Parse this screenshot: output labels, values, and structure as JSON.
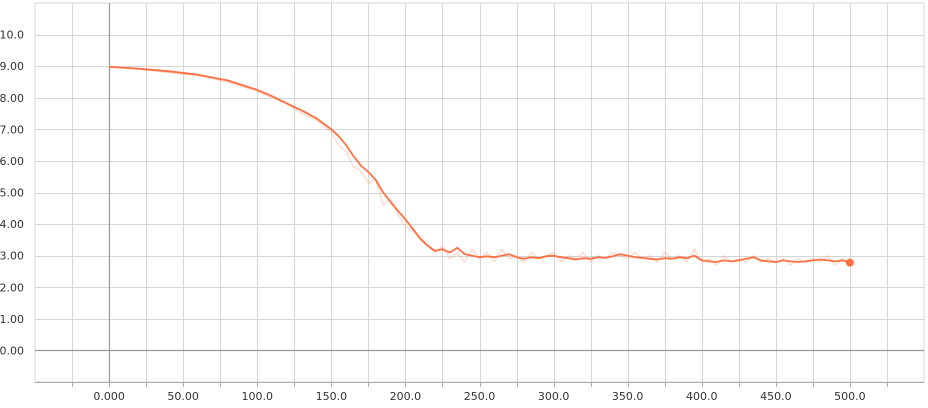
{
  "chart_data": {
    "type": "line",
    "title": "",
    "xlabel": "",
    "ylabel": "",
    "xlim": [
      -50,
      550
    ],
    "ylim": [
      -1,
      11
    ],
    "grid": true,
    "x_ticks": [
      0,
      50,
      100,
      150,
      200,
      250,
      300,
      350,
      400,
      450,
      500
    ],
    "x_tick_labels": [
      "0.000",
      "50.00",
      "100.0",
      "150.0",
      "200.0",
      "250.0",
      "300.0",
      "350.0",
      "400.0",
      "450.0",
      "500.0"
    ],
    "y_ticks": [
      0,
      1,
      2,
      3,
      4,
      5,
      6,
      7,
      8,
      9,
      10
    ],
    "y_tick_labels": [
      "0.00",
      "1.00",
      "2.00",
      "3.00",
      "4.00",
      "5.00",
      "6.00",
      "7.00",
      "8.00",
      "9.00",
      "10.0"
    ],
    "series": [
      {
        "role": "raw",
        "color": "#f4a582",
        "x": [
          0,
          20,
          40,
          60,
          80,
          100,
          110,
          120,
          130,
          140,
          150,
          155,
          160,
          165,
          170,
          175,
          180,
          185,
          190,
          195,
          200,
          205,
          210,
          215,
          220,
          225,
          230,
          235,
          240,
          245,
          250,
          255,
          260,
          265,
          270,
          275,
          280,
          285,
          290,
          295,
          300,
          305,
          310,
          315,
          320,
          325,
          330,
          335,
          340,
          345,
          350,
          355,
          360,
          365,
          370,
          375,
          380,
          385,
          390,
          395,
          400,
          405,
          410,
          415,
          420,
          425,
          430,
          435,
          440,
          445,
          450,
          455,
          460,
          465,
          470,
          475,
          480,
          485,
          490,
          495,
          500
        ],
        "values": [
          8.98,
          8.9,
          8.8,
          8.7,
          8.5,
          8.2,
          8.0,
          7.8,
          7.5,
          7.3,
          6.9,
          6.5,
          6.3,
          5.8,
          5.7,
          5.3,
          5.4,
          4.6,
          4.8,
          4.3,
          3.9,
          3.8,
          3.5,
          3.3,
          3.1,
          3.3,
          2.9,
          3.1,
          2.8,
          3.2,
          2.9,
          3.1,
          2.8,
          3.2,
          2.9,
          3.0,
          2.8,
          3.1,
          2.9,
          3.0,
          3.1,
          2.8,
          3.0,
          2.9,
          3.1,
          2.8,
          3.0,
          2.9,
          3.1,
          3.0,
          2.9,
          3.1,
          2.9,
          3.0,
          2.8,
          3.1,
          2.9,
          3.0,
          2.8,
          3.2,
          2.8,
          2.9,
          2.7,
          3.0,
          2.8,
          2.9,
          2.8,
          3.0,
          2.8,
          2.9,
          2.8,
          2.9,
          2.7,
          2.9,
          2.8,
          2.9,
          2.8,
          3.0,
          2.7,
          2.9,
          2.8
        ]
      },
      {
        "role": "smoothed",
        "color": "#ff7043",
        "x": [
          0,
          20,
          40,
          60,
          80,
          100,
          110,
          120,
          130,
          140,
          150,
          155,
          160,
          165,
          170,
          175,
          180,
          185,
          190,
          195,
          200,
          205,
          210,
          215,
          220,
          225,
          230,
          235,
          240,
          245,
          250,
          255,
          260,
          265,
          270,
          275,
          280,
          285,
          290,
          295,
          300,
          305,
          310,
          315,
          320,
          325,
          330,
          335,
          340,
          345,
          350,
          355,
          360,
          365,
          370,
          375,
          380,
          385,
          390,
          395,
          400,
          405,
          410,
          415,
          420,
          425,
          430,
          435,
          440,
          445,
          450,
          455,
          460,
          465,
          470,
          475,
          480,
          485,
          490,
          495,
          500
        ],
        "values": [
          8.98,
          8.92,
          8.84,
          8.73,
          8.55,
          8.25,
          8.05,
          7.82,
          7.6,
          7.35,
          7.0,
          6.78,
          6.5,
          6.15,
          5.85,
          5.65,
          5.4,
          5.0,
          4.7,
          4.42,
          4.15,
          3.85,
          3.55,
          3.32,
          3.15,
          3.2,
          3.1,
          3.25,
          3.05,
          3.0,
          2.95,
          2.98,
          2.95,
          3.0,
          3.05,
          2.95,
          2.9,
          2.95,
          2.92,
          2.98,
          3.0,
          2.95,
          2.92,
          2.88,
          2.92,
          2.9,
          2.95,
          2.93,
          2.98,
          3.05,
          3.0,
          2.95,
          2.93,
          2.9,
          2.88,
          2.92,
          2.9,
          2.95,
          2.92,
          3.0,
          2.85,
          2.82,
          2.8,
          2.85,
          2.82,
          2.85,
          2.9,
          2.95,
          2.85,
          2.82,
          2.8,
          2.85,
          2.82,
          2.8,
          2.82,
          2.85,
          2.88,
          2.85,
          2.82,
          2.85,
          2.78
        ]
      }
    ]
  }
}
